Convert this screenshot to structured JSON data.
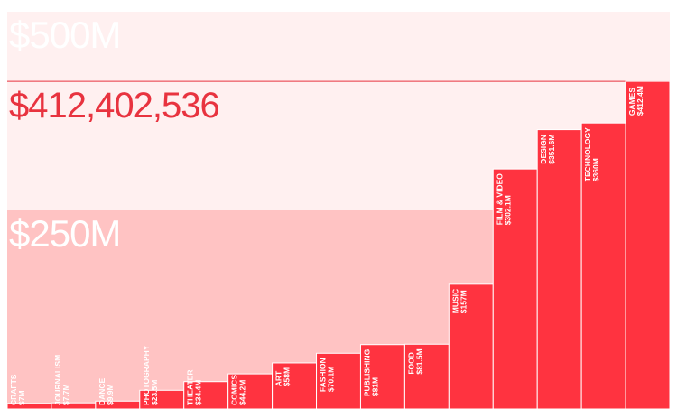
{
  "chart_data": {
    "type": "bar",
    "categories": [
      "CRAFTS",
      "JOURNALISM",
      "DANCE",
      "PHOTOGRAPHY",
      "THEATER",
      "COMICS",
      "ART",
      "FASHION",
      "PUBLISHING",
      "FOOD",
      "MUSIC",
      "FILM & VIDEO",
      "DESIGN",
      "TECHNOLOGY",
      "GAMES"
    ],
    "values": [
      7,
      7.7,
      9.9,
      23.5,
      34.4,
      44.2,
      58,
      70.1,
      81,
      81.5,
      157,
      302.1,
      351.6,
      360,
      412.4
    ],
    "value_labels": [
      "$7M",
      "$7.7M",
      "$9.9M",
      "$23.5M",
      "$34.4M",
      "$44.2M",
      "$58M",
      "$70.1M",
      "$81M",
      "$81.5M",
      "$157M",
      "$302.1M",
      "$351.6M",
      "$360M",
      "$412.4M"
    ],
    "color": "#ff3340",
    "ylim": [
      0,
      500
    ],
    "yticks": [
      {
        "value": 250,
        "label": "$250M"
      },
      {
        "value": 500,
        "label": "$500M"
      }
    ],
    "band_colors": [
      "#ffc3c3",
      "#fff0f0"
    ],
    "max_line": {
      "value": 412.402536,
      "label": "$412,402,536",
      "color": "#e8333f"
    }
  }
}
